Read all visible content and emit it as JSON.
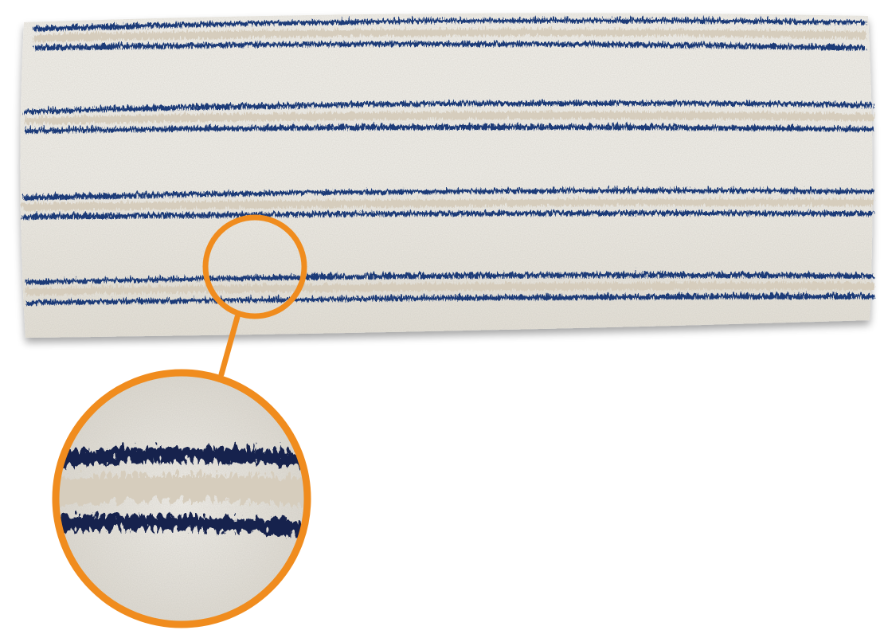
{
  "product": {
    "name": "microfiber-mop-pad",
    "kind": "flat mop pad with blue striped rows",
    "stripe_rows": 4
  },
  "callout": {
    "kind": "magnified-detail",
    "shape": "circle"
  },
  "colors": {
    "background": "#ffffff",
    "pad_base": "#f1efe8",
    "pad_shadow": "#bdb8ad",
    "stripe_blue": "#1d3a78",
    "stripe_dark": "#14244e",
    "stripe_beige": "#d6cdbd",
    "accent_orange": "#f08c1e"
  }
}
